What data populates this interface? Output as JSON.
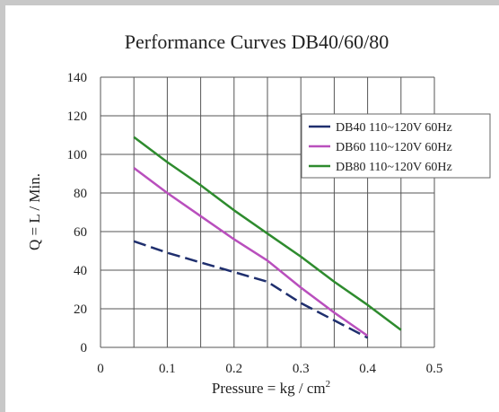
{
  "chart_data": {
    "type": "line",
    "title": "Performance  Curves  DB40/60/80",
    "xlabel": "Pressure = kg / cm",
    "xlabel_sup": "2",
    "ylabel": "Q = L / Min.",
    "xlim": [
      0,
      0.5
    ],
    "ylim": [
      0,
      140
    ],
    "x_ticks": [
      "0",
      "0.1",
      "0.2",
      "0.3",
      "0.4",
      "0.5"
    ],
    "y_ticks": [
      "0",
      "20",
      "40",
      "60",
      "80",
      "100",
      "120",
      "140"
    ],
    "grid": true,
    "legend_position": "top-right",
    "series": [
      {
        "name": "DB40 110~120V 60Hz",
        "color": "#1f2f6e",
        "dashed": true,
        "x": [
          0.05,
          0.1,
          0.15,
          0.2,
          0.25,
          0.3,
          0.35,
          0.4
        ],
        "y": [
          55,
          49,
          44,
          39,
          34,
          23,
          14,
          5
        ]
      },
      {
        "name": "DB60 110~120V 60Hz",
        "color": "#b94fbd",
        "dashed": false,
        "x": [
          0.05,
          0.1,
          0.15,
          0.2,
          0.25,
          0.3,
          0.35,
          0.4
        ],
        "y": [
          93,
          80,
          68,
          56,
          45,
          31,
          18,
          6
        ]
      },
      {
        "name": "DB80 110~120V 60Hz",
        "color": "#2e8b2e",
        "dashed": false,
        "x": [
          0.05,
          0.1,
          0.15,
          0.2,
          0.25,
          0.3,
          0.35,
          0.4,
          0.45
        ],
        "y": [
          109,
          96,
          84,
          71,
          59,
          47,
          34,
          22,
          9
        ]
      }
    ]
  }
}
